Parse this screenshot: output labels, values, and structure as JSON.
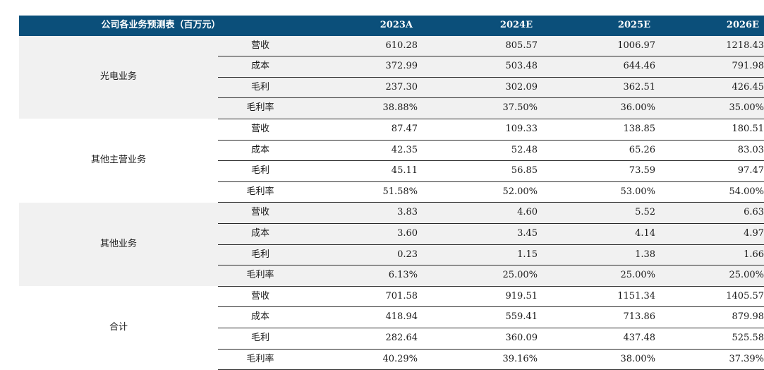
{
  "table": {
    "title": "公司各业务预测表（百万元）",
    "years": [
      "2023A",
      "2024E",
      "2025E",
      "2026E"
    ]
  },
  "chart_data": {
    "type": "table",
    "title": "公司各业务预测表（百万元）",
    "columns": [
      "2023A",
      "2024E",
      "2025E",
      "2026E"
    ],
    "segments": [
      {
        "name": "光电业务",
        "rows": [
          {
            "metric": "营收",
            "values": [
              "610.28",
              "805.57",
              "1006.97",
              "1218.43"
            ]
          },
          {
            "metric": "成本",
            "values": [
              "372.99",
              "503.48",
              "644.46",
              "791.98"
            ]
          },
          {
            "metric": "毛利",
            "values": [
              "237.30",
              "302.09",
              "362.51",
              "426.45"
            ]
          },
          {
            "metric": "毛利率",
            "values": [
              "38.88%",
              "37.50%",
              "36.00%",
              "35.00%"
            ]
          }
        ]
      },
      {
        "name": "其他主营业务",
        "rows": [
          {
            "metric": "营收",
            "values": [
              "87.47",
              "109.33",
              "138.85",
              "180.51"
            ]
          },
          {
            "metric": "成本",
            "values": [
              "42.35",
              "52.48",
              "65.26",
              "83.03"
            ]
          },
          {
            "metric": "毛利",
            "values": [
              "45.11",
              "56.85",
              "73.59",
              "97.47"
            ]
          },
          {
            "metric": "毛利率",
            "values": [
              "51.58%",
              "52.00%",
              "53.00%",
              "54.00%"
            ]
          }
        ]
      },
      {
        "name": "其他业务",
        "rows": [
          {
            "metric": "营收",
            "values": [
              "3.83",
              "4.60",
              "5.52",
              "6.63"
            ]
          },
          {
            "metric": "成本",
            "values": [
              "3.60",
              "3.45",
              "4.14",
              "4.97"
            ]
          },
          {
            "metric": "毛利",
            "values": [
              "0.23",
              "1.15",
              "1.38",
              "1.66"
            ]
          },
          {
            "metric": "毛利率",
            "values": [
              "6.13%",
              "25.00%",
              "25.00%",
              "25.00%"
            ]
          }
        ]
      },
      {
        "name": "合计",
        "rows": [
          {
            "metric": "营收",
            "values": [
              "701.58",
              "919.51",
              "1151.34",
              "1405.57"
            ]
          },
          {
            "metric": "成本",
            "values": [
              "418.94",
              "559.41",
              "713.86",
              "879.98"
            ]
          },
          {
            "metric": "毛利",
            "values": [
              "282.64",
              "360.09",
              "437.48",
              "525.58"
            ]
          },
          {
            "metric": "毛利率",
            "values": [
              "40.29%",
              "39.16%",
              "38.00%",
              "37.39%"
            ]
          }
        ]
      }
    ]
  },
  "colors": {
    "header_background": "#0b4f7a",
    "header_text": "#ffffff",
    "shaded_row": "#f1f1f1",
    "rule": "#2a2a2a"
  }
}
